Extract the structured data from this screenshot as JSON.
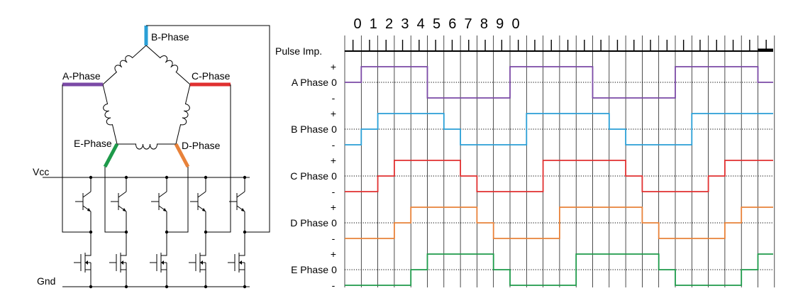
{
  "schematic": {
    "phases": [
      {
        "key": "A",
        "label": "A-Phase",
        "color": "#7b4aa6"
      },
      {
        "key": "B",
        "label": "B-Phase",
        "color": "#2a9fd6"
      },
      {
        "key": "C",
        "label": "C-Phase",
        "color": "#e03030"
      },
      {
        "key": "D",
        "label": "D-Phase",
        "color": "#e8823a"
      },
      {
        "key": "E",
        "label": "E-Phase",
        "color": "#1e9a4a"
      }
    ],
    "vcc_label": "Vcc",
    "gnd_label": "Gnd"
  },
  "timing": {
    "step_numbers": [
      "0",
      "1",
      "2",
      "3",
      "4",
      "5",
      "6",
      "7",
      "8",
      "9",
      "0"
    ],
    "pulse_label": "Pulse Imp.",
    "level_labels": {
      "plus": "+",
      "zero": "0",
      "minus": "-"
    },
    "rows": [
      {
        "label": "A Phase",
        "color": "#7b4aa6",
        "levels": [
          0,
          1,
          1,
          1,
          1,
          -1,
          -1,
          -1,
          -1,
          -1,
          1,
          1,
          1,
          1,
          1,
          -1,
          -1,
          -1,
          -1,
          -1,
          1,
          1,
          1,
          1,
          1,
          0
        ]
      },
      {
        "label": "B Phase",
        "color": "#2a9fd6",
        "levels": [
          -1,
          0,
          1,
          1,
          1,
          1,
          0,
          -1,
          -1,
          -1,
          -1,
          1,
          1,
          1,
          1,
          1,
          0,
          -1,
          -1,
          -1,
          -1,
          1,
          1,
          1,
          1,
          1
        ]
      },
      {
        "label": "C Phase",
        "color": "#e03030",
        "levels": [
          -1,
          -1,
          0,
          1,
          1,
          1,
          1,
          0,
          -1,
          -1,
          -1,
          -1,
          1,
          1,
          1,
          1,
          1,
          0,
          -1,
          -1,
          -1,
          -1,
          0,
          1,
          1,
          1
        ]
      },
      {
        "label": "D Phase",
        "color": "#e8823a",
        "levels": [
          -1,
          -1,
          -1,
          0,
          1,
          1,
          1,
          1,
          0,
          -1,
          -1,
          -1,
          -1,
          1,
          1,
          1,
          1,
          1,
          0,
          -1,
          -1,
          -1,
          -1,
          0,
          1,
          1
        ]
      },
      {
        "label": "E Phase",
        "color": "#1e9a4a",
        "levels": [
          -1,
          -1,
          -1,
          -1,
          0,
          1,
          1,
          1,
          1,
          0,
          -1,
          -1,
          -1,
          -1,
          1,
          1,
          1,
          1,
          1,
          0,
          -1,
          -1,
          -1,
          -1,
          0,
          1
        ]
      }
    ]
  }
}
